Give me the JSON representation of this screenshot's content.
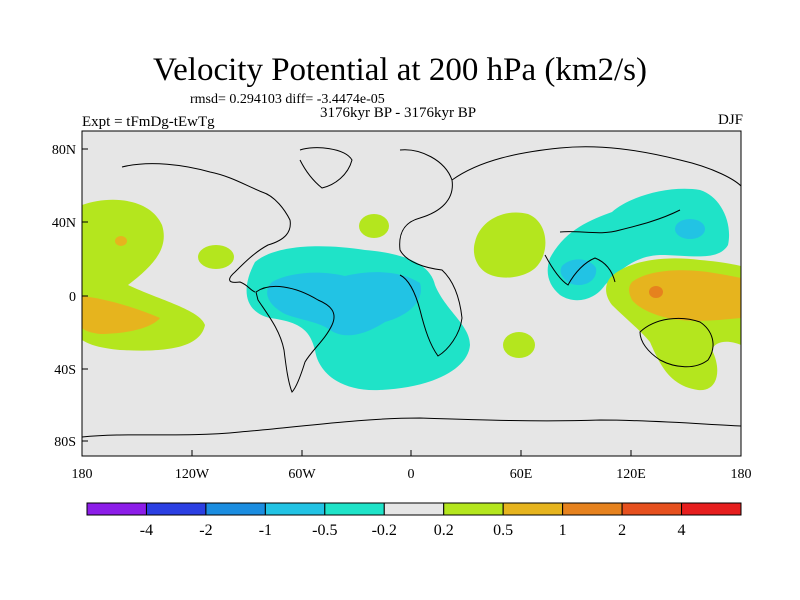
{
  "figure": {
    "title": "Velocity Potential at 200 hPa (km2/s)",
    "stats": "rmsd= 0.294103 diff= -3.4474e-05",
    "experiment": "Expt = tFmDg-tEwTg",
    "period": "3176kyr BP - 3176kyr BP",
    "season": "DJF"
  },
  "map": {
    "lon_labels": [
      "180",
      "120W",
      "60W",
      "0",
      "60E",
      "120E",
      "180"
    ],
    "lat_labels": [
      "80N",
      "40N",
      "0",
      "40S",
      "80S"
    ]
  },
  "colorbar": {
    "labels": [
      "-4",
      "-2",
      "-1",
      "-0.5",
      "-0.2",
      "0.2",
      "0.5",
      "1",
      "2",
      "4"
    ],
    "colors": [
      "#8c1de8",
      "#2b3fe2",
      "#1b8de0",
      "#22c3e4",
      "#1fe3c8",
      "#e6e6e6",
      "#b4e61e",
      "#e6b41e",
      "#e6821e",
      "#e6501e",
      "#e61e1e"
    ]
  },
  "fields": {
    "background_color": "#e6e6e6"
  }
}
